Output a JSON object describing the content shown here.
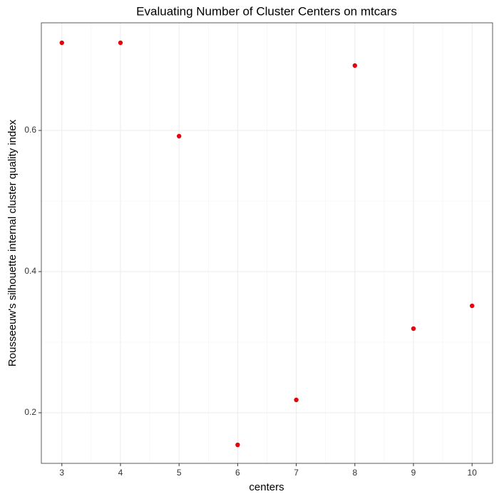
{
  "chart_data": {
    "type": "scatter",
    "title": "Evaluating Number of Cluster Centers on mtcars",
    "x_label": "centers",
    "y_label": "Rousseeuw's silhouette internal cluster quality index",
    "x": [
      3,
      4,
      5,
      6,
      7,
      8,
      9,
      10
    ],
    "values": [
      0.7242,
      0.7242,
      0.5919,
      0.1545,
      0.2182,
      0.6919,
      0.3192,
      0.3515
    ],
    "color": "#e8000b",
    "xlim": [
      2.65,
      10.35
    ],
    "xticks": [
      3,
      4,
      5,
      6,
      7,
      8,
      9,
      10
    ],
    "ylim": [
      0.1283,
      0.7525
    ],
    "yticks": [
      0.2,
      0.4,
      0.6
    ],
    "grid": true
  }
}
